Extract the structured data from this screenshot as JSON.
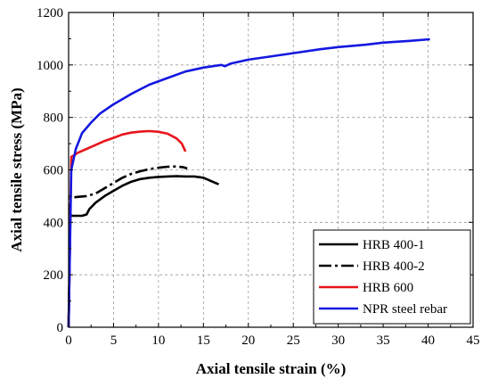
{
  "chart_data": {
    "type": "line",
    "title": "",
    "xlabel": "Axial tensile strain (%)",
    "ylabel": "Axial tensile stress (MPa)",
    "xlim": [
      0,
      45
    ],
    "ylim": [
      0,
      1200
    ],
    "xticks": [
      "0",
      "5",
      "10",
      "15",
      "20",
      "25",
      "30",
      "35",
      "40",
      "45"
    ],
    "yticks": [
      "0",
      "200",
      "400",
      "600",
      "800",
      "1000",
      "1200"
    ],
    "grid": "dashed",
    "legend_position": "bottom-right",
    "series": [
      {
        "name": "HRB 400-1",
        "color": "#000000",
        "style": "solid",
        "points": [
          [
            0,
            0
          ],
          [
            0.2,
            430
          ],
          [
            0.35,
            425
          ],
          [
            0.8,
            425
          ],
          [
            1.5,
            425
          ],
          [
            2.0,
            430
          ],
          [
            2.3,
            450
          ],
          [
            3,
            475
          ],
          [
            4,
            500
          ],
          [
            5,
            520
          ],
          [
            6,
            540
          ],
          [
            7,
            555
          ],
          [
            8,
            565
          ],
          [
            9,
            570
          ],
          [
            10,
            573
          ],
          [
            11,
            575
          ],
          [
            12,
            576
          ],
          [
            13,
            575
          ],
          [
            14,
            575
          ],
          [
            15,
            570
          ],
          [
            16,
            555
          ],
          [
            16.7,
            545
          ]
        ]
      },
      {
        "name": "HRB 400-2",
        "color": "#000000",
        "style": "dashdot",
        "points": [
          [
            0,
            0
          ],
          [
            0.2,
            495
          ],
          [
            0.5,
            495
          ],
          [
            1,
            497
          ],
          [
            2,
            500
          ],
          [
            3,
            510
          ],
          [
            4,
            530
          ],
          [
            5,
            550
          ],
          [
            6,
            570
          ],
          [
            7,
            585
          ],
          [
            8,
            595
          ],
          [
            9,
            603
          ],
          [
            10,
            608
          ],
          [
            11,
            612
          ],
          [
            12,
            613
          ],
          [
            12.8,
            610
          ],
          [
            13.2,
            605
          ]
        ]
      },
      {
        "name": "HRB 600",
        "color": "#e8141c",
        "style": "solid",
        "points": [
          [
            0,
            0
          ],
          [
            0.3,
            650
          ],
          [
            0.6,
            655
          ],
          [
            1,
            665
          ],
          [
            2,
            680
          ],
          [
            3,
            695
          ],
          [
            4,
            710
          ],
          [
            5,
            722
          ],
          [
            6,
            735
          ],
          [
            7,
            742
          ],
          [
            8,
            746
          ],
          [
            9,
            748
          ],
          [
            10,
            745
          ],
          [
            11,
            738
          ],
          [
            12,
            720
          ],
          [
            12.6,
            700
          ],
          [
            13,
            670
          ]
        ]
      },
      {
        "name": "NPR steel rebar",
        "color": "#1418e0",
        "style": "solid",
        "points": [
          [
            0,
            0
          ],
          [
            0.3,
            600
          ],
          [
            0.8,
            680
          ],
          [
            1.5,
            740
          ],
          [
            2.5,
            780
          ],
          [
            3.5,
            815
          ],
          [
            5,
            850
          ],
          [
            7,
            890
          ],
          [
            9,
            925
          ],
          [
            11,
            950
          ],
          [
            13,
            975
          ],
          [
            15,
            990
          ],
          [
            17,
            1000
          ],
          [
            17.4,
            995
          ],
          [
            18,
            1005
          ],
          [
            20,
            1020
          ],
          [
            22,
            1030
          ],
          [
            25,
            1045
          ],
          [
            28,
            1060
          ],
          [
            30,
            1068
          ],
          [
            33,
            1077
          ],
          [
            35,
            1085
          ],
          [
            38,
            1092
          ],
          [
            40.2,
            1098
          ]
        ]
      }
    ]
  }
}
